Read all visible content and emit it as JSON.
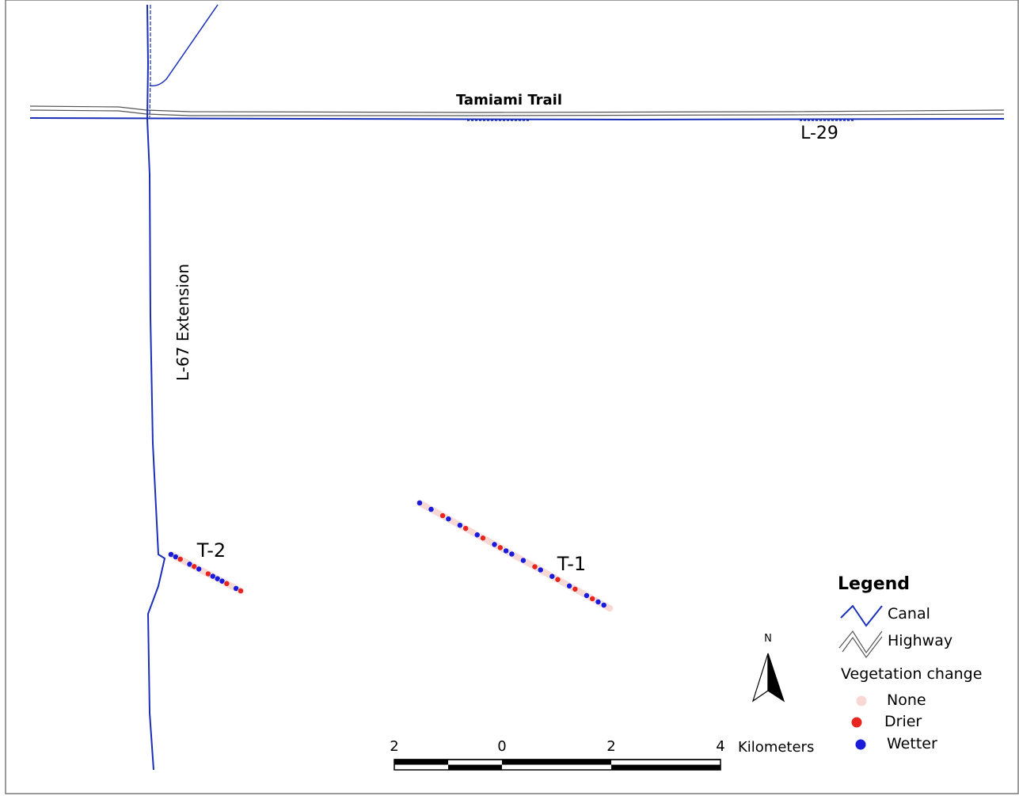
{
  "map": {
    "labels": {
      "highway": "Tamiami Trail",
      "canal_north": "L-29",
      "canal_west": "L-67 Extension",
      "transect_1": "T-1",
      "transect_2": "T-2"
    },
    "legend": {
      "title": "Legend",
      "items": [
        {
          "label": "Canal",
          "icon": "canal-line-icon"
        },
        {
          "label": "Highway",
          "icon": "highway-line-icon"
        }
      ],
      "vegetation_title": "Vegetation change",
      "vegetation_items": [
        {
          "label": "None",
          "color": "#f8d8d2"
        },
        {
          "label": "Drier",
          "color": "#e8251f"
        },
        {
          "label": "Wetter",
          "color": "#1b1bd9"
        }
      ]
    },
    "north_arrow": {
      "label": "N"
    },
    "scale_bar": {
      "ticks": [
        "2",
        "0",
        "2",
        "4"
      ],
      "unit": "Kilometers"
    },
    "colors": {
      "canal": "#1a2fb8",
      "highway": "#555555",
      "none": "#f8d8d2",
      "drier": "#e8251f",
      "wetter": "#1b1bd9"
    }
  }
}
